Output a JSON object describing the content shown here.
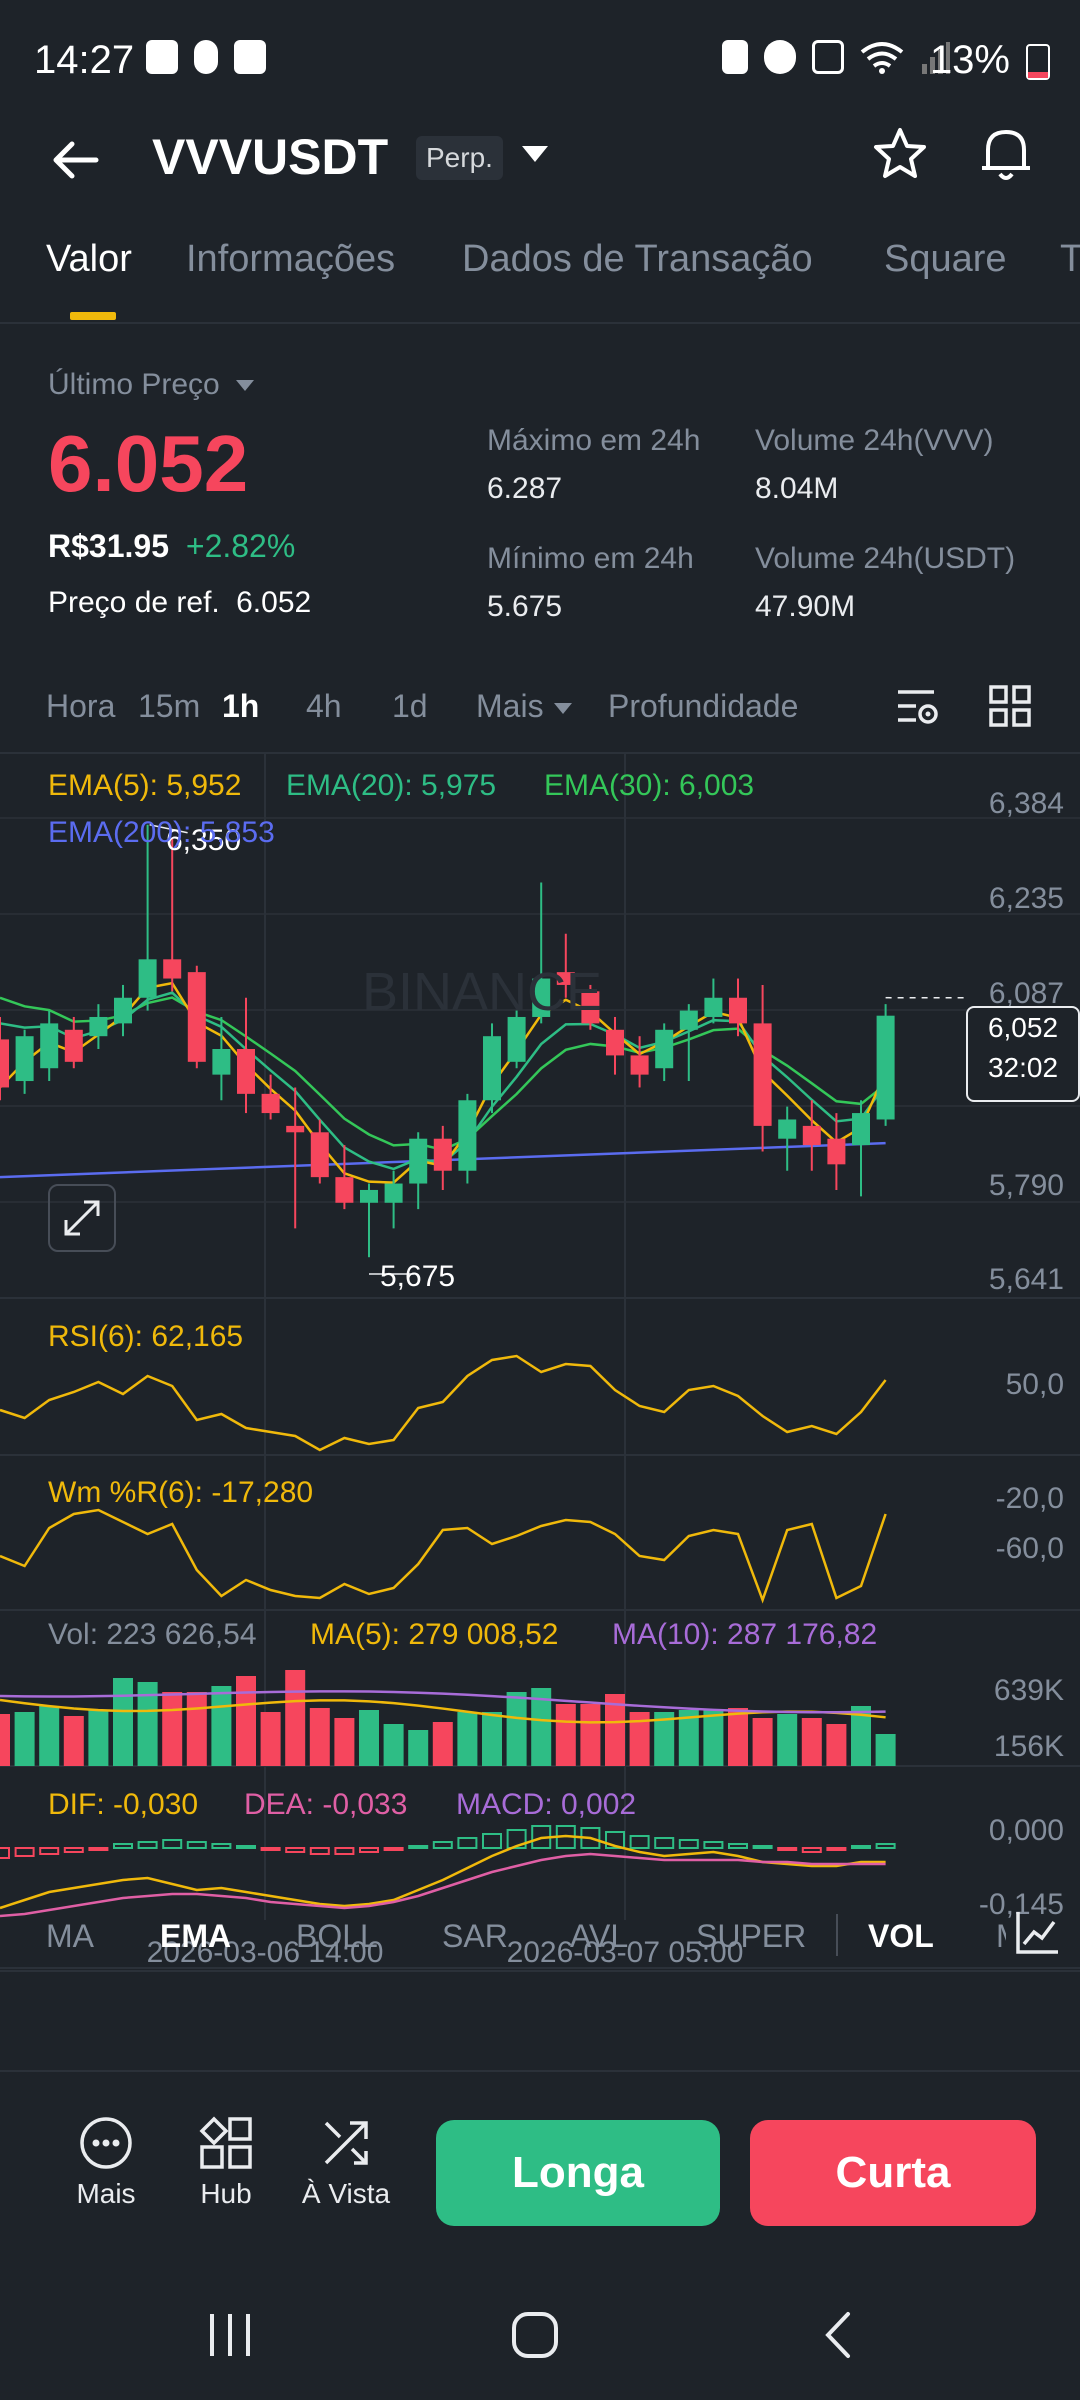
{
  "status_bar": {
    "time": "14:27",
    "battery": "13%"
  },
  "header": {
    "symbol": "VVVUSDT",
    "contract": "Perp."
  },
  "tabs": [
    "Valor",
    "Informações",
    "Dados de Transação",
    "Square",
    "T"
  ],
  "price_panel": {
    "last_price_label": "Último Preço",
    "last_price": "6.052",
    "fiat_price": "R$31.95",
    "change_pct": "+2.82%",
    "ref_label": "Preço de ref.",
    "ref_value": "6.052",
    "high_label": "Máximo em 24h",
    "high_value": "6.287",
    "low_label": "Mínimo em 24h",
    "low_value": "5.675",
    "vol_base_label": "Volume 24h(VVV)",
    "vol_base_value": "8.04M",
    "vol_quote_label": "Volume 24h(USDT)",
    "vol_quote_value": "47.90M"
  },
  "timeframes": {
    "hora": "Hora",
    "m15": "15m",
    "h1": "1h",
    "h4": "4h",
    "d1": "1d",
    "more": "Mais",
    "depth": "Profundidade",
    "active": "1h"
  },
  "legend": {
    "ema5": "EMA(5): 5,952",
    "ema20": "EMA(20): 5,975",
    "ema30": "EMA(30): 6,003",
    "ema200": "EMA(200): 5,853",
    "rsi": "RSI(6): 62,165",
    "wr": "Wm %R(6): -17,280",
    "vol": "Vol: 223 626,54",
    "vol_ma5": "MA(5): 279 008,52",
    "vol_ma10": "MA(10): 287 176,82",
    "dif": "DIF: -0,030",
    "dea": "DEA: -0,033",
    "macd": "MACD: 0,002"
  },
  "colors": {
    "up": "#2ebd85",
    "down": "#f6465d",
    "ema5": "#f0b90b",
    "ema20": "#2ebd85",
    "ema30": "#34c759",
    "ema200": "#5b6cf0",
    "ma10": "#a86cd8",
    "dea": "#e05fa5",
    "macd": "#a86cd8",
    "accent": "#f0b90b"
  },
  "chart_data": {
    "type": "candlestick",
    "price_axis_ticks": [
      "6,384",
      "6,235",
      "6,087",
      "5,790",
      "5,641"
    ],
    "current_price": "6,052",
    "countdown": "32:02",
    "high_marker": "6,350",
    "low_marker": "5,675",
    "x_ticks": [
      "2026-03-06 14:00",
      "2026-03-07 05:00"
    ],
    "ylim": [
      5.641,
      6.384
    ],
    "candles": [
      {
        "o": 6.015,
        "h": 6.05,
        "l": 5.92,
        "c": 5.94
      },
      {
        "o": 5.95,
        "h": 6.03,
        "l": 5.93,
        "c": 6.02
      },
      {
        "o": 5.97,
        "h": 6.06,
        "l": 5.95,
        "c": 6.04
      },
      {
        "o": 6.03,
        "h": 6.05,
        "l": 5.97,
        "c": 5.98
      },
      {
        "o": 6.02,
        "h": 6.07,
        "l": 6.0,
        "c": 6.05
      },
      {
        "o": 6.04,
        "h": 6.1,
        "l": 6.02,
        "c": 6.08
      },
      {
        "o": 6.08,
        "h": 6.35,
        "l": 6.06,
        "c": 6.14
      },
      {
        "o": 6.14,
        "h": 6.33,
        "l": 6.09,
        "c": 6.11
      },
      {
        "o": 6.12,
        "h": 6.13,
        "l": 5.97,
        "c": 5.98
      },
      {
        "o": 5.96,
        "h": 6.05,
        "l": 5.92,
        "c": 6.0
      },
      {
        "o": 6.0,
        "h": 6.08,
        "l": 5.9,
        "c": 5.93
      },
      {
        "o": 5.93,
        "h": 5.96,
        "l": 5.89,
        "c": 5.9
      },
      {
        "o": 5.88,
        "h": 5.94,
        "l": 5.72,
        "c": 5.87
      },
      {
        "o": 5.87,
        "h": 5.89,
        "l": 5.79,
        "c": 5.8
      },
      {
        "o": 5.8,
        "h": 5.85,
        "l": 5.75,
        "c": 5.76
      },
      {
        "o": 5.76,
        "h": 5.79,
        "l": 5.675,
        "c": 5.78
      },
      {
        "o": 5.76,
        "h": 5.81,
        "l": 5.72,
        "c": 5.79
      },
      {
        "o": 5.79,
        "h": 5.87,
        "l": 5.75,
        "c": 5.86
      },
      {
        "o": 5.86,
        "h": 5.88,
        "l": 5.78,
        "c": 5.81
      },
      {
        "o": 5.81,
        "h": 5.93,
        "l": 5.79,
        "c": 5.92
      },
      {
        "o": 5.92,
        "h": 6.04,
        "l": 5.9,
        "c": 6.02
      },
      {
        "o": 5.98,
        "h": 6.06,
        "l": 5.97,
        "c": 6.05
      },
      {
        "o": 6.05,
        "h": 6.26,
        "l": 6.04,
        "c": 6.11
      },
      {
        "o": 6.12,
        "h": 6.18,
        "l": 6.08,
        "c": 6.1
      },
      {
        "o": 6.09,
        "h": 6.1,
        "l": 6.03,
        "c": 6.04
      },
      {
        "o": 6.03,
        "h": 6.05,
        "l": 5.96,
        "c": 5.99
      },
      {
        "o": 5.99,
        "h": 6.02,
        "l": 5.94,
        "c": 5.96
      },
      {
        "o": 5.97,
        "h": 6.04,
        "l": 5.95,
        "c": 6.03
      },
      {
        "o": 6.03,
        "h": 6.07,
        "l": 5.95,
        "c": 6.06
      },
      {
        "o": 6.05,
        "h": 6.11,
        "l": 6.04,
        "c": 6.08
      },
      {
        "o": 6.08,
        "h": 6.11,
        "l": 6.02,
        "c": 6.04
      },
      {
        "o": 6.04,
        "h": 6.1,
        "l": 5.84,
        "c": 5.88
      },
      {
        "o": 5.86,
        "h": 5.91,
        "l": 5.81,
        "c": 5.89
      },
      {
        "o": 5.88,
        "h": 5.92,
        "l": 5.81,
        "c": 5.85
      },
      {
        "o": 5.86,
        "h": 5.9,
        "l": 5.78,
        "c": 5.82
      },
      {
        "o": 5.85,
        "h": 5.92,
        "l": 5.77,
        "c": 5.9
      },
      {
        "o": 5.89,
        "h": 6.07,
        "l": 5.88,
        "c": 6.052
      }
    ],
    "rsi_ticks": [
      "50,0"
    ],
    "wr_ticks": [
      "-20,0",
      "-60,0"
    ],
    "vol_ticks": [
      "639K",
      "156K"
    ],
    "macd_ticks": [
      "0,000",
      "-0,145"
    ]
  },
  "indicator_tabs": [
    "MA",
    "EMA",
    "BOLL",
    "SAR",
    "AVL",
    "SUPER",
    "VOL",
    "M"
  ],
  "actions": {
    "more": "Mais",
    "hub": "Hub",
    "spot": "À Vista",
    "long": "Longa",
    "short": "Curta"
  }
}
